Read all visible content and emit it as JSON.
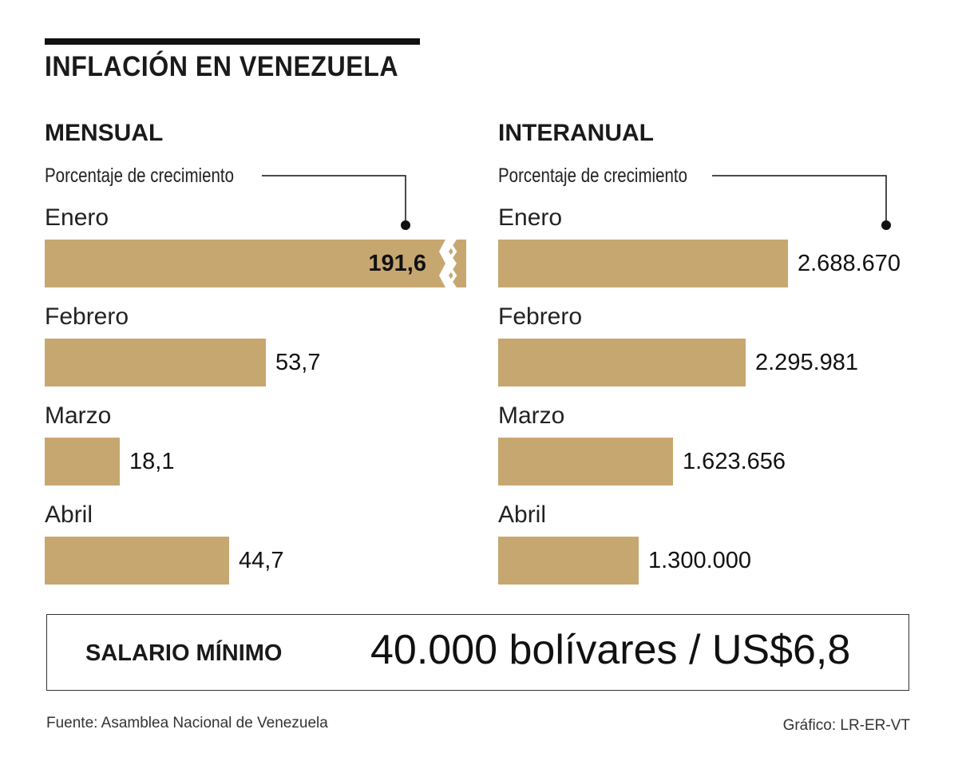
{
  "header": {
    "title": "INFLACIÓN EN VENEZUELA"
  },
  "colors": {
    "bar": "#c7a770",
    "text": "#1a1a1a",
    "rule": "#111111"
  },
  "chart_data": [
    {
      "type": "bar",
      "orientation": "horizontal",
      "title": "MENSUAL",
      "subtitle": "Porcentaje de crecimiento",
      "categories": [
        "Enero",
        "Febrero",
        "Marzo",
        "Abril"
      ],
      "values": [
        191.6,
        53.7,
        18.1,
        44.7
      ],
      "value_labels": [
        "191,6",
        "53,7",
        "18,1",
        "44,7"
      ],
      "axis_break_on": "Enero"
    },
    {
      "type": "bar",
      "orientation": "horizontal",
      "title": "INTERANUAL",
      "subtitle": "Porcentaje de crecimiento",
      "categories": [
        "Enero",
        "Febrero",
        "Marzo",
        "Abril"
      ],
      "values": [
        2688670,
        2295981,
        1623656,
        1300000
      ],
      "value_labels": [
        "2.688.670",
        "2.295.981",
        "1.623.656",
        "1.300.000"
      ]
    }
  ],
  "salary": {
    "label": "SALARIO MÍNIMO",
    "value": "40.000 bolívares / US$6,8"
  },
  "footer": {
    "source": "Fuente: Asamblea Nacional de Venezuela",
    "credit": "Gráfico: LR-ER-VT"
  }
}
